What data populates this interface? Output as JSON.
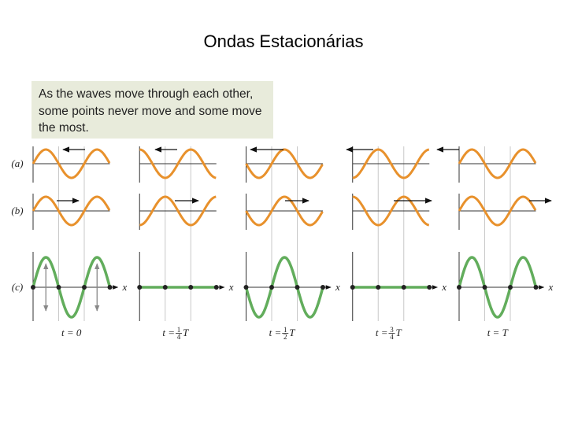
{
  "header": {
    "title": "Ondas Estacionárias"
  },
  "caption": {
    "lines": [
      "As the waves move through each other,",
      "some points never move and some move",
      "the most."
    ]
  },
  "rows": [
    "(a)",
    "(b)",
    "(c)"
  ],
  "axis_label": "x",
  "columns": [
    {
      "label": "t = 0"
    },
    {
      "label": "t =",
      "numerator": "1",
      "denominator": "4",
      "variable": "T"
    },
    {
      "label": "t =",
      "numerator": "1",
      "denominator": "2",
      "variable": "T"
    },
    {
      "label": "t =",
      "numerator": "3",
      "denominator": "4",
      "variable": "T"
    },
    {
      "label": "t = T"
    }
  ]
}
